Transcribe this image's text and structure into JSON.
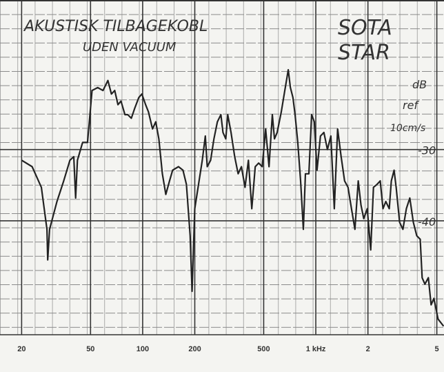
{
  "chart_data": {
    "type": "line",
    "title": "AKUSTISK TILBAGEKOBL",
    "subtitle": "UDEN VACUUM",
    "annotations": [
      "SOTA",
      "STAR",
      "dB",
      "ref",
      "10cm/s"
    ],
    "log_x": true,
    "grid": true,
    "color": "#222222",
    "xlim": [
      15,
      5500
    ],
    "ylim": [
      -56,
      -9
    ],
    "xticks": [
      20,
      50,
      100,
      200,
      500,
      {
        "value": 1000,
        "label": "1 kHz"
      },
      {
        "value": 2000,
        "label": "2"
      },
      {
        "value": 5000,
        "label": "5"
      }
    ],
    "yticks": [
      {
        "value": -30,
        "label": "-30"
      },
      {
        "value": -40,
        "label": "-40"
      }
    ],
    "x": [
      20,
      23,
      26,
      28,
      28.3,
      29,
      32,
      35,
      38,
      40,
      41,
      42,
      45,
      48,
      49,
      51,
      55,
      59,
      63,
      66,
      69,
      72,
      75,
      79,
      82,
      86,
      90,
      95,
      99,
      104,
      108,
      114,
      119,
      124,
      130,
      136,
      143,
      149,
      161,
      171,
      179,
      188,
      193,
      200,
      209,
      221,
      230,
      236,
      247,
      258,
      270,
      283,
      291,
      302,
      310,
      324,
      340,
      356,
      372,
      390,
      408,
      427,
      447,
      468,
      490,
      513,
      537,
      561,
      577,
      598,
      632,
      662,
      693,
      713,
      738,
      759,
      787,
      817,
      847,
      871,
      912,
      946,
      980,
      1016,
      1064,
      1114,
      1167,
      1222,
      1279,
      1337,
      1400,
      1466,
      1535,
      1607,
      1683,
      1758,
      1824,
      1892,
      1982,
      2075,
      2152,
      2254,
      2355,
      2444,
      2536,
      2655,
      2729,
      2831,
      2910,
      3048,
      3184,
      3334,
      3491,
      3656,
      3828,
      4008,
      4111,
      4266,
      4467,
      4634,
      4808,
      5082,
      5470
    ],
    "values": [
      -31.5,
      -32.4,
      -35.3,
      -41.2,
      -45.5,
      -41.2,
      -37.3,
      -34.4,
      -31.5,
      -31.0,
      -36.8,
      -31.5,
      -29.0,
      -29.0,
      -26.6,
      -21.7,
      -21.3,
      -21.7,
      -20.3,
      -22.2,
      -21.7,
      -23.7,
      -23.2,
      -25.1,
      -25.1,
      -25.6,
      -24.2,
      -22.7,
      -22.2,
      -23.7,
      -24.7,
      -27.1,
      -26.1,
      -28.5,
      -33.4,
      -36.3,
      -34.4,
      -32.9,
      -32.4,
      -32.9,
      -34.9,
      -42.1,
      -49.9,
      -38.3,
      -35.3,
      -31.5,
      -28.1,
      -32.4,
      -31.5,
      -28.5,
      -26.1,
      -25.1,
      -27.6,
      -28.5,
      -25.1,
      -27.6,
      -31.0,
      -33.4,
      -32.4,
      -35.3,
      -31.5,
      -38.3,
      -32.4,
      -31.9,
      -32.4,
      -27.1,
      -32.4,
      -25.1,
      -28.5,
      -27.6,
      -24.7,
      -21.7,
      -18.8,
      -21.3,
      -22.7,
      -25.1,
      -29.0,
      -34.4,
      -41.2,
      -33.4,
      -33.4,
      -25.1,
      -26.1,
      -32.9,
      -28.1,
      -27.6,
      -30.0,
      -28.1,
      -38.3,
      -27.1,
      -31.0,
      -34.4,
      -35.3,
      -38.3,
      -41.2,
      -34.4,
      -37.8,
      -39.7,
      -38.3,
      -44.1,
      -35.3,
      -34.9,
      -34.4,
      -38.3,
      -37.3,
      -38.3,
      -34.4,
      -32.9,
      -35.3,
      -40.2,
      -41.2,
      -38.3,
      -36.8,
      -40.2,
      -42.1,
      -42.6,
      -48.0,
      -48.9,
      -48.0,
      -51.8,
      -50.9,
      -53.8,
      -54.8
    ]
  }
}
